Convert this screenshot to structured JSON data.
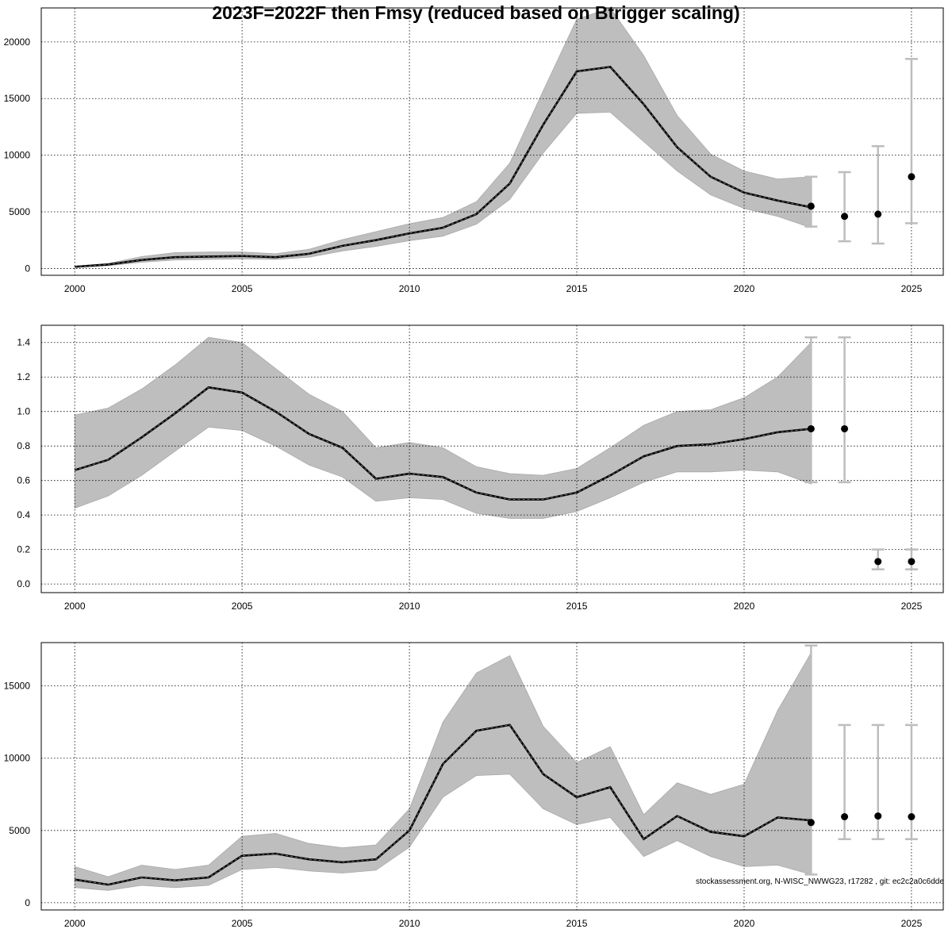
{
  "title": "2023F=2022F then Fmsy (reduced based on Btrigger scaling)",
  "footer": "stockassessment.org, N-WISC_NWWG23, r17282 , git: ec2c2a0c6dde",
  "colors": {
    "band": "#bebebe",
    "band_edge": "#a9a9a9",
    "line": "#000000",
    "errorbar": "#bdbdbd",
    "point": "#000000",
    "grid": "#000000"
  },
  "chart_data": [
    {
      "type": "line",
      "name": "panel-ssb",
      "xlabel": "",
      "ylabel": "",
      "xlim": [
        1999.0,
        2025.95
      ],
      "ylim": [
        -600,
        23000
      ],
      "xticks": [
        2000,
        2005,
        2010,
        2015,
        2020,
        2025
      ],
      "yticks": [
        0,
        5000,
        10000,
        15000,
        20000
      ],
      "ytick_labels": [
        "0",
        "5000",
        "10000",
        "15000",
        "20000"
      ],
      "grid": true,
      "x": [
        2000,
        2001,
        2002,
        2003,
        2004,
        2005,
        2006,
        2007,
        2008,
        2009,
        2010,
        2011,
        2012,
        2013,
        2014,
        2015,
        2016,
        2017,
        2018,
        2019,
        2020,
        2021,
        2022
      ],
      "estimate": [
        150,
        350,
        750,
        1000,
        1050,
        1100,
        1000,
        1300,
        2000,
        2500,
        3100,
        3600,
        4800,
        7500,
        12700,
        17400,
        17800,
        14500,
        10700,
        8100,
        6700,
        6000,
        5400
      ],
      "low": [
        100,
        250,
        550,
        750,
        800,
        850,
        800,
        1000,
        1550,
        1950,
        2450,
        2850,
        3900,
        6100,
        10200,
        13700,
        13800,
        11200,
        8600,
        6500,
        5300,
        4600,
        3600
      ],
      "high": [
        200,
        450,
        1050,
        1400,
        1450,
        1450,
        1300,
        1700,
        2550,
        3250,
        3950,
        4500,
        5900,
        9300,
        15700,
        22000,
        23000,
        18800,
        13500,
        10100,
        8600,
        7900,
        8100
      ],
      "forecast": [
        {
          "x": 2022,
          "y": 5500,
          "low": 3700,
          "high": 8100
        },
        {
          "x": 2023,
          "y": 4600,
          "low": 2400,
          "high": 8500
        },
        {
          "x": 2024,
          "y": 4800,
          "low": 2200,
          "high": 10800
        },
        {
          "x": 2025,
          "y": 8100,
          "low": 4000,
          "high": 18500
        }
      ]
    },
    {
      "type": "line",
      "name": "panel-f",
      "xlabel": "",
      "ylabel": "",
      "xlim": [
        1999.0,
        2025.95
      ],
      "ylim": [
        -0.05,
        1.5
      ],
      "xticks": [
        2000,
        2005,
        2010,
        2015,
        2020,
        2025
      ],
      "yticks": [
        0.0,
        0.2,
        0.4,
        0.6,
        0.8,
        1.0,
        1.2,
        1.4
      ],
      "ytick_labels": [
        "0.0",
        "0.2",
        "0.4",
        "0.6",
        "0.8",
        "1.0",
        "1.2",
        "1.4"
      ],
      "grid": true,
      "x": [
        2000,
        2001,
        2002,
        2003,
        2004,
        2005,
        2006,
        2007,
        2008,
        2009,
        2010,
        2011,
        2012,
        2013,
        2014,
        2015,
        2016,
        2017,
        2018,
        2019,
        2020,
        2021,
        2022
      ],
      "estimate": [
        0.66,
        0.72,
        0.85,
        0.99,
        1.14,
        1.11,
        1.0,
        0.87,
        0.79,
        0.61,
        0.64,
        0.62,
        0.53,
        0.49,
        0.49,
        0.53,
        0.63,
        0.74,
        0.8,
        0.81,
        0.84,
        0.88,
        0.9
      ],
      "low": [
        0.44,
        0.51,
        0.63,
        0.77,
        0.91,
        0.89,
        0.8,
        0.69,
        0.62,
        0.48,
        0.5,
        0.49,
        0.41,
        0.38,
        0.38,
        0.42,
        0.5,
        0.59,
        0.65,
        0.65,
        0.66,
        0.65,
        0.58
      ],
      "high": [
        0.98,
        1.02,
        1.13,
        1.27,
        1.43,
        1.4,
        1.25,
        1.1,
        1.0,
        0.79,
        0.82,
        0.79,
        0.68,
        0.64,
        0.63,
        0.67,
        0.79,
        0.92,
        1.0,
        1.01,
        1.08,
        1.2,
        1.4
      ],
      "forecast": [
        {
          "x": 2022,
          "y": 0.9,
          "low": 0.59,
          "high": 1.43
        },
        {
          "x": 2023,
          "y": 0.9,
          "low": 0.59,
          "high": 1.43
        },
        {
          "x": 2024,
          "y": 0.13,
          "low": 0.085,
          "high": 0.2
        },
        {
          "x": 2025,
          "y": 0.13,
          "low": 0.085,
          "high": 0.2
        }
      ]
    },
    {
      "type": "line",
      "name": "panel-recruits",
      "xlabel": "",
      "ylabel": "",
      "xlim": [
        1999.0,
        2025.95
      ],
      "ylim": [
        -500,
        18000
      ],
      "xticks": [
        2000,
        2005,
        2010,
        2015,
        2020,
        2025
      ],
      "yticks": [
        0,
        5000,
        10000,
        15000
      ],
      "ytick_labels": [
        "0",
        "5000",
        "10000",
        "15000"
      ],
      "grid": true,
      "x": [
        2000,
        2001,
        2002,
        2003,
        2004,
        2005,
        2006,
        2007,
        2008,
        2009,
        2010,
        2011,
        2012,
        2013,
        2014,
        2015,
        2016,
        2017,
        2018,
        2019,
        2020,
        2021,
        2022
      ],
      "estimate": [
        1600,
        1250,
        1750,
        1550,
        1750,
        3250,
        3400,
        3000,
        2800,
        3000,
        5000,
        9600,
        11900,
        12300,
        8900,
        7300,
        8000,
        4400,
        6000,
        4900,
        4600,
        5900,
        5700
      ],
      "low": [
        1050,
        850,
        1200,
        1050,
        1200,
        2300,
        2450,
        2200,
        2050,
        2250,
        3850,
        7300,
        8800,
        8900,
        6500,
        5400,
        5900,
        3200,
        4300,
        3200,
        2500,
        2600,
        1950
      ],
      "high": [
        2500,
        1800,
        2600,
        2300,
        2600,
        4600,
        4800,
        4100,
        3800,
        4000,
        6500,
        12500,
        15900,
        17100,
        12200,
        9700,
        10800,
        6100,
        8300,
        7500,
        8200,
        13300,
        17300
      ],
      "forecast": [
        {
          "x": 2022,
          "y": 5550,
          "low": 1950,
          "high": 17800
        },
        {
          "x": 2023,
          "y": 5950,
          "low": 4400,
          "high": 12300
        },
        {
          "x": 2024,
          "y": 6000,
          "low": 4400,
          "high": 12300
        },
        {
          "x": 2025,
          "y": 5950,
          "low": 4400,
          "high": 12300
        }
      ]
    }
  ]
}
